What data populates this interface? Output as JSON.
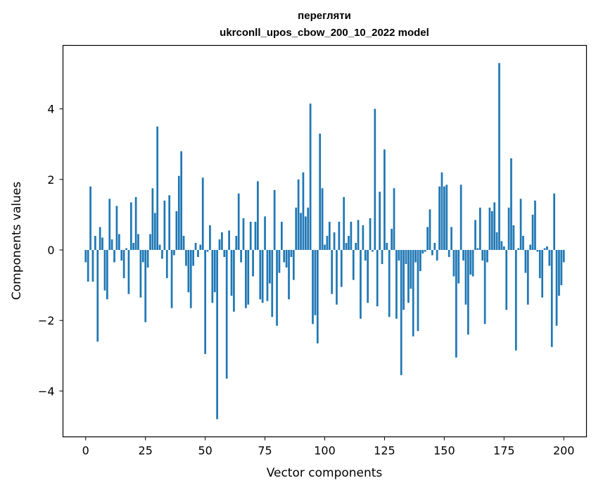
{
  "chart_data": {
    "type": "bar",
    "title": "перегляти",
    "subtitle": "ukrconll_upos_cbow_200_10_2022 model",
    "xlabel": "Vector components",
    "ylabel": "Components values",
    "xlim": [
      -9.5,
      209.5
    ],
    "ylim": [
      -5.3,
      5.8
    ],
    "xticks": [
      0,
      25,
      50,
      75,
      100,
      125,
      150,
      175,
      200
    ],
    "yticks": [
      -4,
      -2,
      0,
      2,
      4
    ],
    "ytick_labels": [
      "−4",
      "−2",
      "0",
      "2",
      "4"
    ],
    "grid": false,
    "bar_color": "#1f77b4",
    "values": [
      -0.35,
      -0.9,
      1.8,
      -0.9,
      0.4,
      -2.6,
      0.65,
      0.35,
      -1.15,
      -1.4,
      1.45,
      0.3,
      -0.35,
      1.25,
      0.45,
      -0.3,
      -0.8,
      0.05,
      -1.25,
      1.35,
      0.2,
      1.5,
      0.45,
      -1.35,
      -0.35,
      -2.05,
      -0.5,
      0.45,
      1.75,
      1.05,
      3.5,
      0.15,
      -0.25,
      1.4,
      -0.8,
      1.55,
      -1.65,
      -0.15,
      1.1,
      2.1,
      2.8,
      0.4,
      -0.45,
      -1.2,
      -1.65,
      -0.45,
      0.2,
      -0.2,
      0.15,
      2.05,
      -2.95,
      -0.05,
      0.7,
      -1.5,
      -1.2,
      -4.8,
      0.3,
      0.5,
      -0.2,
      -3.65,
      0.55,
      -1.3,
      -1.75,
      0.4,
      1.6,
      -0.35,
      0.9,
      -1.65,
      -1.55,
      0.8,
      -0.75,
      0.8,
      1.95,
      -1.4,
      -1.5,
      0.95,
      -1.45,
      -0.95,
      -1.9,
      1.7,
      -2.15,
      -0.65,
      0.8,
      -0.35,
      -0.5,
      -1.4,
      -0.2,
      -0.85,
      1.2,
      2.0,
      1.05,
      2.2,
      0.95,
      1.2,
      4.15,
      -2.1,
      -1.85,
      -2.65,
      3.3,
      1.75,
      0.15,
      0.4,
      0.8,
      -1.25,
      0.5,
      -1.55,
      0.8,
      -1.05,
      1.5,
      0.2,
      0.4,
      0.8,
      -0.85,
      0.2,
      0.85,
      -1.95,
      0.7,
      -0.3,
      -1.5,
      0.9,
      -0.05,
      4.0,
      -1.6,
      1.65,
      -0.4,
      2.85,
      0.2,
      -1.9,
      0.6,
      1.75,
      -1.95,
      -0.3,
      -3.55,
      -1.7,
      -0.4,
      -1.5,
      -1.1,
      -2.45,
      -0.35,
      -2.3,
      -0.6,
      -0.1,
      -0.05,
      0.65,
      1.15,
      -0.15,
      0.2,
      -0.3,
      1.8,
      2.2,
      1.8,
      1.85,
      -0.2,
      0.65,
      -0.75,
      -3.05,
      -0.95,
      1.85,
      -0.3,
      -1.55,
      -2.4,
      -0.7,
      -0.75,
      0.85,
      0.05,
      1.2,
      -0.3,
      -2.1,
      -0.35,
      1.2,
      1.1,
      1.35,
      0.5,
      5.3,
      0.25,
      0.1,
      -1.7,
      1.2,
      2.6,
      0.7,
      -2.85,
      0.05,
      1.45,
      0.4,
      -0.65,
      -1.55,
      0.15,
      1.0,
      1.4,
      -0.05,
      -0.8,
      -1.35,
      0.05,
      0.1,
      -0.45,
      -2.75,
      1.6,
      -2.15,
      -1.3,
      -1.0,
      -0.35
    ]
  }
}
